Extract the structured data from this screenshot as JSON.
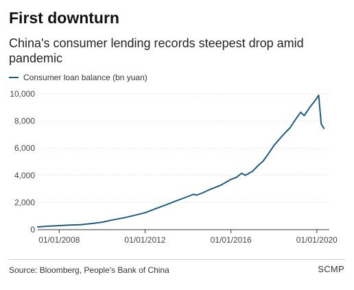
{
  "header": {
    "title": "First downturn",
    "subtitle": "China's consumer lending records steepest drop amid pandemic"
  },
  "legend": {
    "label": "Consumer loan balance (bn yuan)"
  },
  "colors": {
    "series": "#1d5a7a",
    "grid": "#dddddd",
    "axis": "#333333",
    "rule": "#cccccc"
  },
  "chart_data": {
    "type": "line",
    "title": "",
    "xlabel": "",
    "ylabel": "",
    "grid": true,
    "legend_position": "top-left",
    "xlim": [
      "2007-01-01",
      "2020-07-31"
    ],
    "ylim": [
      0,
      10000
    ],
    "x_ticks": [
      "2008-01-01",
      "2012-01-01",
      "2016-01-01",
      "2020-01-01"
    ],
    "x_tick_labels": [
      "01/01/2008",
      "01/01/2012",
      "01/01/2016",
      "01/01/2020"
    ],
    "y_ticks": [
      0,
      2000,
      4000,
      6000,
      8000,
      10000
    ],
    "y_tick_labels": [
      "0",
      "2,000",
      "4,000",
      "6,000",
      "8,000",
      "10,000"
    ],
    "series": [
      {
        "name": "Consumer loan balance (bn yuan)",
        "color": "#1d5a7a",
        "points": [
          [
            "2007-01-01",
            200
          ],
          [
            "2007-07-01",
            260
          ],
          [
            "2008-01-01",
            300
          ],
          [
            "2008-07-01",
            340
          ],
          [
            "2009-01-01",
            370
          ],
          [
            "2009-07-01",
            450
          ],
          [
            "2010-01-01",
            550
          ],
          [
            "2010-07-01",
            720
          ],
          [
            "2011-01-01",
            870
          ],
          [
            "2011-07-01",
            1050
          ],
          [
            "2012-01-01",
            1250
          ],
          [
            "2012-07-01",
            1550
          ],
          [
            "2013-01-01",
            1850
          ],
          [
            "2013-07-01",
            2150
          ],
          [
            "2014-01-01",
            2450
          ],
          [
            "2014-04-01",
            2600
          ],
          [
            "2014-06-01",
            2550
          ],
          [
            "2014-09-01",
            2700
          ],
          [
            "2015-01-01",
            2950
          ],
          [
            "2015-07-01",
            3250
          ],
          [
            "2016-01-01",
            3700
          ],
          [
            "2016-04-01",
            3850
          ],
          [
            "2016-07-01",
            4150
          ],
          [
            "2016-09-01",
            4000
          ],
          [
            "2017-01-01",
            4300
          ],
          [
            "2017-04-01",
            4700
          ],
          [
            "2017-07-01",
            5050
          ],
          [
            "2017-10-01",
            5600
          ],
          [
            "2018-01-01",
            6200
          ],
          [
            "2018-04-01",
            6650
          ],
          [
            "2018-07-01",
            7100
          ],
          [
            "2018-10-01",
            7500
          ],
          [
            "2019-01-01",
            8100
          ],
          [
            "2019-04-01",
            8650
          ],
          [
            "2019-06-01",
            8400
          ],
          [
            "2019-09-01",
            9000
          ],
          [
            "2019-12-01",
            9500
          ],
          [
            "2020-02-01",
            9900
          ],
          [
            "2020-03-15",
            7800
          ],
          [
            "2020-05-01",
            7450
          ]
        ]
      }
    ]
  },
  "footer": {
    "source": "Source: Bloomberg, People's Bank of China",
    "brand": "SCMP"
  }
}
